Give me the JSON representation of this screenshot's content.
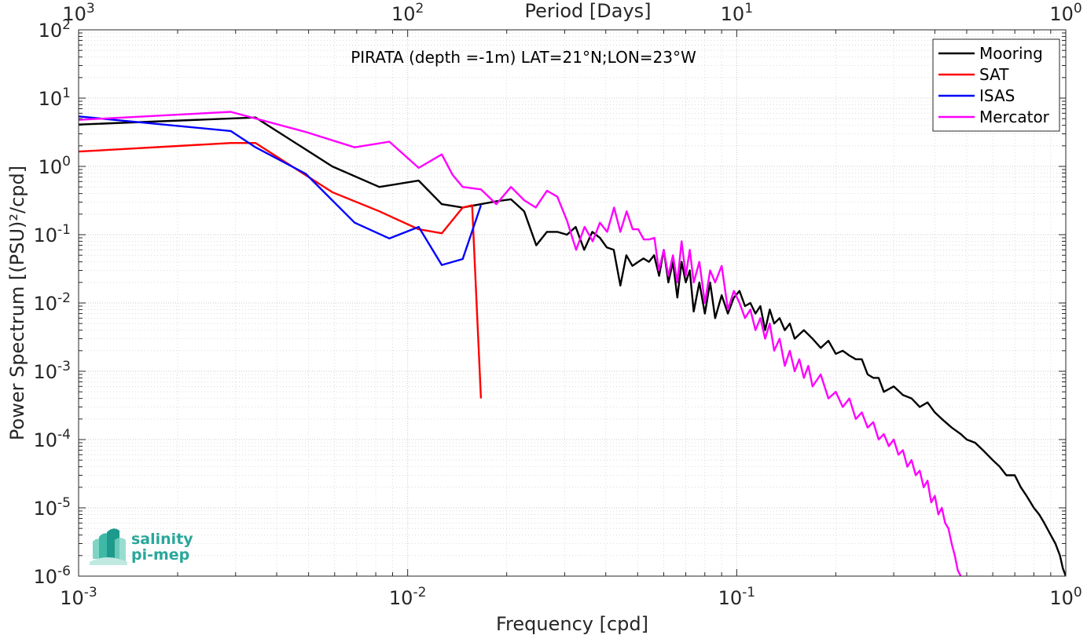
{
  "chart_data": {
    "type": "line",
    "title": "PIRATA (depth =-1m) LAT=21°N;LON=23°W",
    "xlabel": "Frequency [cpd]",
    "ylabel": "Power Spectrum [(PSU)²/cpd]",
    "top_xlabel": "Period [Days]",
    "xscale": "log",
    "yscale": "log",
    "xlim": [
      0.001,
      1
    ],
    "ylim": [
      1e-06,
      100
    ],
    "grid": true,
    "legend_position": "top-right",
    "x_ticks": [
      {
        "value": 0.001,
        "base": "10",
        "exp": "-3"
      },
      {
        "value": 0.01,
        "base": "10",
        "exp": "-2"
      },
      {
        "value": 0.1,
        "base": "10",
        "exp": "-1"
      },
      {
        "value": 1,
        "base": "10",
        "exp": "0"
      }
    ],
    "top_ticks": [
      {
        "value": 0.001,
        "base": "10",
        "exp": "3"
      },
      {
        "value": 0.01,
        "base": "10",
        "exp": "2"
      },
      {
        "value": 0.1,
        "base": "10",
        "exp": "1"
      },
      {
        "value": 1,
        "base": "10",
        "exp": "0"
      }
    ],
    "y_ticks": [
      {
        "value": 100,
        "base": "10",
        "exp": "2"
      },
      {
        "value": 10,
        "base": "10",
        "exp": "1"
      },
      {
        "value": 1,
        "base": "10",
        "exp": "0"
      },
      {
        "value": 0.1,
        "base": "10",
        "exp": "-1"
      },
      {
        "value": 0.01,
        "base": "10",
        "exp": "-2"
      },
      {
        "value": 0.001,
        "base": "10",
        "exp": "-3"
      },
      {
        "value": 0.0001,
        "base": "10",
        "exp": "-4"
      },
      {
        "value": 1e-05,
        "base": "10",
        "exp": "-5"
      },
      {
        "value": 1e-06,
        "base": "10",
        "exp": "-6"
      }
    ],
    "series": [
      {
        "name": "Mooring",
        "color": "#000000",
        "x": [
          0.001,
          0.00345,
          0.0059,
          0.0082,
          0.0108,
          0.0127,
          0.0147,
          0.0167,
          0.0187,
          0.0206,
          0.0226,
          0.0246,
          0.0265,
          0.0285,
          0.0305,
          0.0324,
          0.0344,
          0.0364,
          0.0384,
          0.0403,
          0.0423,
          0.0443,
          0.0462,
          0.0482,
          0.0502,
          0.0521,
          0.0541,
          0.0561,
          0.0581,
          0.06,
          0.062,
          0.064,
          0.066,
          0.068,
          0.07,
          0.072,
          0.074,
          0.077,
          0.08,
          0.083,
          0.086,
          0.09,
          0.094,
          0.098,
          0.102,
          0.106,
          0.11,
          0.114,
          0.118,
          0.122,
          0.126,
          0.13,
          0.135,
          0.14,
          0.145,
          0.15,
          0.16,
          0.17,
          0.18,
          0.19,
          0.2,
          0.21,
          0.22,
          0.23,
          0.24,
          0.25,
          0.26,
          0.27,
          0.28,
          0.3,
          0.32,
          0.34,
          0.36,
          0.38,
          0.4,
          0.42,
          0.45,
          0.48,
          0.5,
          0.53,
          0.56,
          0.6,
          0.63,
          0.66,
          0.7,
          0.73,
          0.76,
          0.8,
          0.83,
          0.86,
          0.9,
          0.93,
          0.96,
          0.98,
          1.0
        ],
        "y": [
          4.1,
          5.2,
          1.0,
          0.5,
          0.62,
          0.28,
          0.25,
          0.28,
          0.31,
          0.33,
          0.22,
          0.07,
          0.11,
          0.11,
          0.1,
          0.13,
          0.06,
          0.11,
          0.09,
          0.065,
          0.06,
          0.018,
          0.05,
          0.035,
          0.04,
          0.045,
          0.04,
          0.05,
          0.025,
          0.06,
          0.02,
          0.04,
          0.012,
          0.04,
          0.02,
          0.03,
          0.0075,
          0.02,
          0.007,
          0.02,
          0.006,
          0.013,
          0.007,
          0.012,
          0.015,
          0.009,
          0.01,
          0.007,
          0.009,
          0.004,
          0.008,
          0.005,
          0.006,
          0.004,
          0.005,
          0.003,
          0.004,
          0.003,
          0.0022,
          0.0028,
          0.0018,
          0.002,
          0.0017,
          0.0015,
          0.0015,
          0.0009,
          0.0008,
          0.0008,
          0.0005,
          0.0006,
          0.00045,
          0.0004,
          0.0003,
          0.00035,
          0.00025,
          0.0002,
          0.00015,
          0.00012,
          0.0001,
          9e-05,
          7e-05,
          5e-05,
          4e-05,
          3e-05,
          3e-05,
          2e-05,
          1.5e-05,
          1e-05,
          8e-06,
          6e-06,
          4e-06,
          3e-06,
          2e-06,
          1.3e-06,
          1e-06
        ]
      },
      {
        "name": "SAT",
        "color": "#ff0000",
        "x": [
          0.001,
          0.0029,
          0.00345,
          0.0059,
          0.0082,
          0.0108,
          0.0127,
          0.0147,
          0.0157,
          0.0167
        ],
        "y": [
          1.65,
          2.2,
          2.2,
          0.42,
          0.22,
          0.12,
          0.105,
          0.25,
          0.27,
          0.0004
        ]
      },
      {
        "name": "ISAS",
        "color": "#0000ff",
        "x": [
          0.001,
          0.0029,
          0.00345,
          0.0049,
          0.0069,
          0.0088,
          0.0108,
          0.0127,
          0.0147,
          0.0167
        ],
        "y": [
          5.4,
          3.3,
          1.9,
          0.78,
          0.15,
          0.088,
          0.13,
          0.036,
          0.044,
          0.27
        ]
      },
      {
        "name": "Mercator",
        "color": "#ff00ff",
        "x": [
          0.001,
          0.0029,
          0.0049,
          0.0069,
          0.0088,
          0.0108,
          0.0127,
          0.0137,
          0.0147,
          0.0167,
          0.0186,
          0.0206,
          0.0226,
          0.0245,
          0.0265,
          0.0285,
          0.0305,
          0.0325,
          0.0345,
          0.0365,
          0.0384,
          0.0404,
          0.0424,
          0.0443,
          0.0463,
          0.0483,
          0.0502,
          0.0522,
          0.0542,
          0.0562,
          0.058,
          0.06,
          0.062,
          0.064,
          0.066,
          0.068,
          0.07,
          0.072,
          0.074,
          0.077,
          0.08,
          0.083,
          0.086,
          0.09,
          0.094,
          0.098,
          0.102,
          0.106,
          0.11,
          0.114,
          0.118,
          0.122,
          0.126,
          0.13,
          0.135,
          0.14,
          0.145,
          0.15,
          0.155,
          0.16,
          0.165,
          0.17,
          0.18,
          0.19,
          0.2,
          0.21,
          0.22,
          0.23,
          0.24,
          0.25,
          0.26,
          0.27,
          0.28,
          0.29,
          0.3,
          0.31,
          0.32,
          0.33,
          0.34,
          0.35,
          0.36,
          0.37,
          0.38,
          0.39,
          0.4,
          0.41,
          0.42,
          0.43,
          0.44,
          0.45,
          0.46,
          0.47,
          0.48
        ],
        "y": [
          4.8,
          6.3,
          3.2,
          1.9,
          2.3,
          0.95,
          1.5,
          0.75,
          0.5,
          0.46,
          0.28,
          0.5,
          0.32,
          0.25,
          0.44,
          0.36,
          0.16,
          0.06,
          0.13,
          0.08,
          0.15,
          0.11,
          0.25,
          0.11,
          0.22,
          0.12,
          0.12,
          0.085,
          0.085,
          0.09,
          0.03,
          0.06,
          0.025,
          0.05,
          0.02,
          0.08,
          0.025,
          0.06,
          0.02,
          0.04,
          0.01,
          0.03,
          0.02,
          0.035,
          0.008,
          0.015,
          0.01,
          0.006,
          0.008,
          0.004,
          0.006,
          0.003,
          0.005,
          0.002,
          0.003,
          0.0012,
          0.002,
          0.001,
          0.0015,
          0.0008,
          0.0012,
          0.0006,
          0.0009,
          0.0004,
          0.0005,
          0.0003,
          0.0004,
          0.0002,
          0.00025,
          0.00015,
          0.00018,
          0.0001,
          0.00012,
          8e-05,
          0.0001,
          6e-05,
          7e-05,
          4e-05,
          5e-05,
          3e-05,
          3.5e-05,
          2e-05,
          2.5e-05,
          1.2e-05,
          1.5e-05,
          8e-06,
          1e-05,
          6e-06,
          5e-06,
          3e-06,
          2e-06,
          1.2e-06,
          1e-06
        ]
      }
    ]
  },
  "logo": {
    "line1": "salinity",
    "line2": "pi-mep"
  }
}
